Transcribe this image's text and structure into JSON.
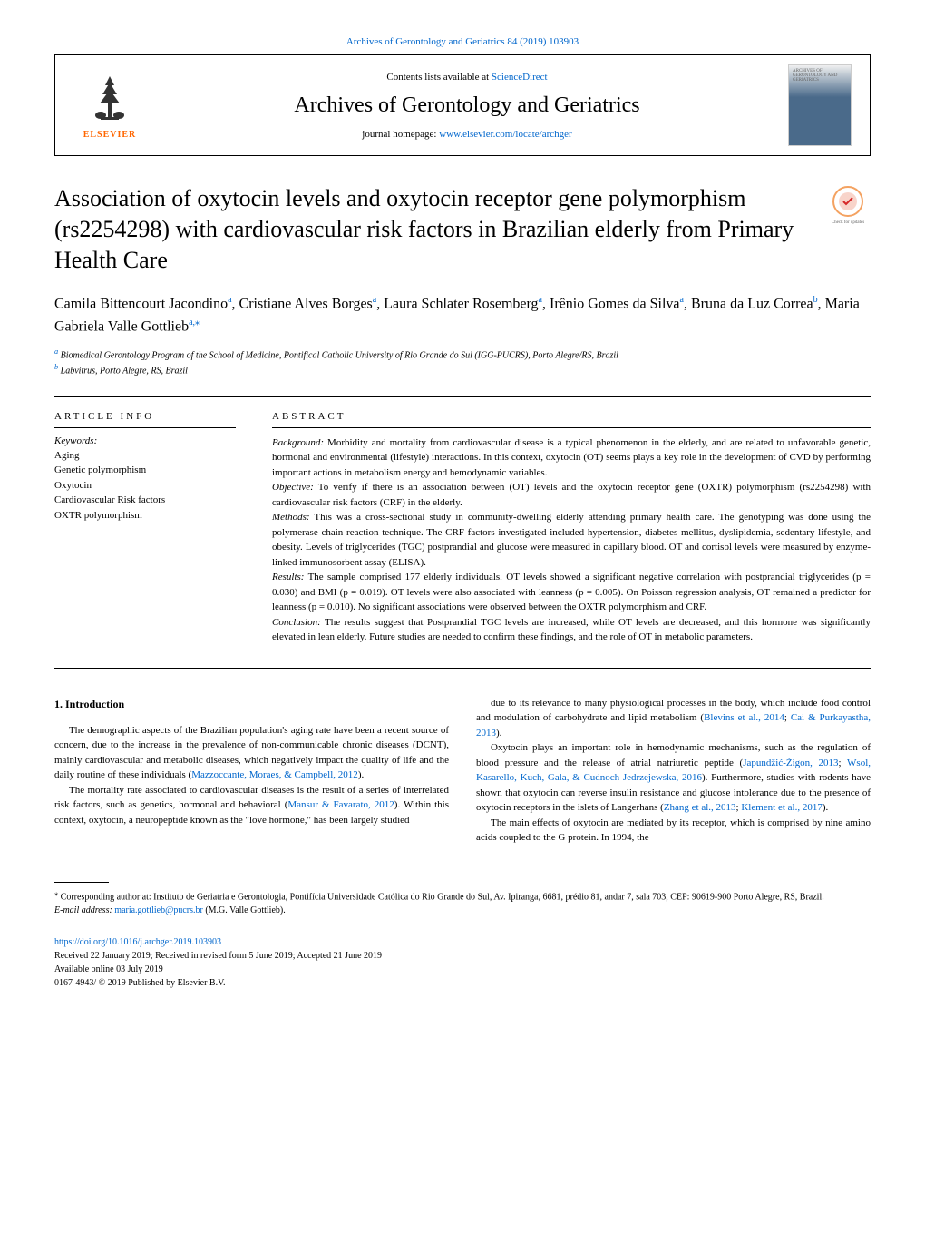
{
  "header": {
    "top_link": "Archives of Gerontology and Geriatrics 84 (2019) 103903",
    "contents_text": "Contents lists available at ",
    "contents_link": "ScienceDirect",
    "journal_name": "Archives of Gerontology and Geriatrics",
    "homepage_text": "journal homepage: ",
    "homepage_link": "www.elsevier.com/locate/archger",
    "elsevier_label": "ELSEVIER",
    "cover_label": "ARCHIVES OF GERONTOLOGY AND GERIATRICS"
  },
  "title": "Association of oxytocin levels and oxytocin receptor gene polymorphism (rs2254298) with cardiovascular risk factors in Brazilian elderly from Primary Health Care",
  "check_updates_label": "Check for updates",
  "authors_html": "Camila Bittencourt Jacondino<sup>a</sup>, Cristiane Alves Borges<sup>a</sup>, Laura Schlater Rosemberg<sup>a</sup>, Irênio Gomes da Silva<sup>a</sup>, Bruna da Luz Correa<sup>b</sup>, Maria Gabriela Valle Gottlieb<sup>a,⁎</sup>",
  "affiliations": {
    "a": "Biomedical Gerontology Program of the School of Medicine, Pontifical Catholic University of Rio Grande do Sul (IGG-PUCRS), Porto Alegre/RS, Brazil",
    "b": "Labvitrus, Porto Alegre, RS, Brazil"
  },
  "article_info": {
    "heading": "ARTICLE INFO",
    "keywords_label": "Keywords:",
    "keywords": [
      "Aging",
      "Genetic polymorphism",
      "Oxytocin",
      "Cardiovascular Risk factors",
      "OXTR polymorphism"
    ]
  },
  "abstract": {
    "heading": "ABSTRACT",
    "sections": [
      {
        "label": "Background:",
        "text": " Morbidity and mortality from cardiovascular disease is a typical phenomenon in the elderly, and are related to unfavorable genetic, hormonal and environmental (lifestyle) interactions. In this context, oxytocin (OT) seems plays a key role in the development of CVD by performing important actions in metabolism energy and hemodynamic variables."
      },
      {
        "label": "Objective:",
        "text": " To verify if there is an association between (OT) levels and the oxytocin receptor gene (OXTR) polymorphism (rs2254298) with cardiovascular risk factors (CRF) in the elderly."
      },
      {
        "label": "Methods:",
        "text": " This was a cross-sectional study in community-dwelling elderly attending primary health care. The genotyping was done using the polymerase chain reaction technique. The CRF factors investigated included hypertension, diabetes mellitus, dyslipidemia, sedentary lifestyle, and obesity. Levels of triglycerides (TGC) postprandial and glucose were measured in capillary blood. OT and cortisol levels were measured by enzyme-linked immunosorbent assay (ELISA)."
      },
      {
        "label": "Results:",
        "text": " The sample comprised 177 elderly individuals. OT levels showed a significant negative correlation with postprandial triglycerides (p = 0.030) and BMI (p = 0.019). OT levels were also associated with leanness (p = 0.005). On Poisson regression analysis, OT remained a predictor for leanness (p = 0.010). No significant associations were observed between the OXTR polymorphism and CRF."
      },
      {
        "label": "Conclusion:",
        "text": " The results suggest that Postprandial TGC levels are increased, while OT levels are decreased, and this hormone was significantly elevated in lean elderly. Future studies are needed to confirm these findings, and the role of OT in metabolic parameters."
      }
    ]
  },
  "introduction": {
    "heading": "1. Introduction",
    "left_paragraphs": [
      "The demographic aspects of the Brazilian population's aging rate have been a recent source of concern, due to the increase in the prevalence of non-communicable chronic diseases (DCNT), mainly cardiovascular and metabolic diseases, which negatively impact the quality of life and the daily routine of these individuals (<a>Mazzoccante, Moraes, & Campbell, 2012</a>).",
      "The mortality rate associated to cardiovascular diseases is the result of a series of interrelated risk factors, such as genetics, hormonal and behavioral (<a>Mansur & Favarato, 2012</a>). Within this context, oxytocin, a neuropeptide known as the \"love hormone,\" has been largely studied"
    ],
    "right_paragraphs": [
      "due to its relevance to many physiological processes in the body, which include food control and modulation of carbohydrate and lipid metabolism (<a>Blevins et al., 2014</a>; <a>Cai & Purkayastha, 2013</a>).",
      "Oxytocin plays an important role in hemodynamic mechanisms, such as the regulation of blood pressure and the release of atrial natriuretic peptide (<a>Japundžić-Žigon, 2013</a>; <a>Wsol, Kasarello, Kuch, Gala, & Cudnoch-Jedrzejewska, 2016</a>). Furthermore, studies with rodents have shown that oxytocin can reverse insulin resistance and glucose intolerance due to the presence of oxytocin receptors in the islets of Langerhans (<a>Zhang et al., 2013</a>; <a>Klement et al., 2017</a>).",
      "The main effects of oxytocin are mediated by its receptor, which is comprised by nine amino acids coupled to the G protein. In 1994, the"
    ]
  },
  "footer": {
    "corresponding_marker": "⁎",
    "corresponding_text": " Corresponding author at: Instituto de Geriatria e Gerontologia, Pontifícia Universidade Católica do Rio Grande do Sul, Av. Ipiranga, 6681, prédio 81, andar 7, sala 703, CEP: 90619-900 Porto Alegre, RS, Brazil.",
    "email_label": "E-mail address: ",
    "email": "maria.gottlieb@pucrs.br",
    "email_suffix": " (M.G. Valle Gottlieb).",
    "doi": "https://doi.org/10.1016/j.archger.2019.103903",
    "received": "Received 22 January 2019; Received in revised form 5 June 2019; Accepted 21 June 2019",
    "available": "Available online 03 July 2019",
    "copyright": "0167-4943/ © 2019 Published by Elsevier B.V."
  }
}
